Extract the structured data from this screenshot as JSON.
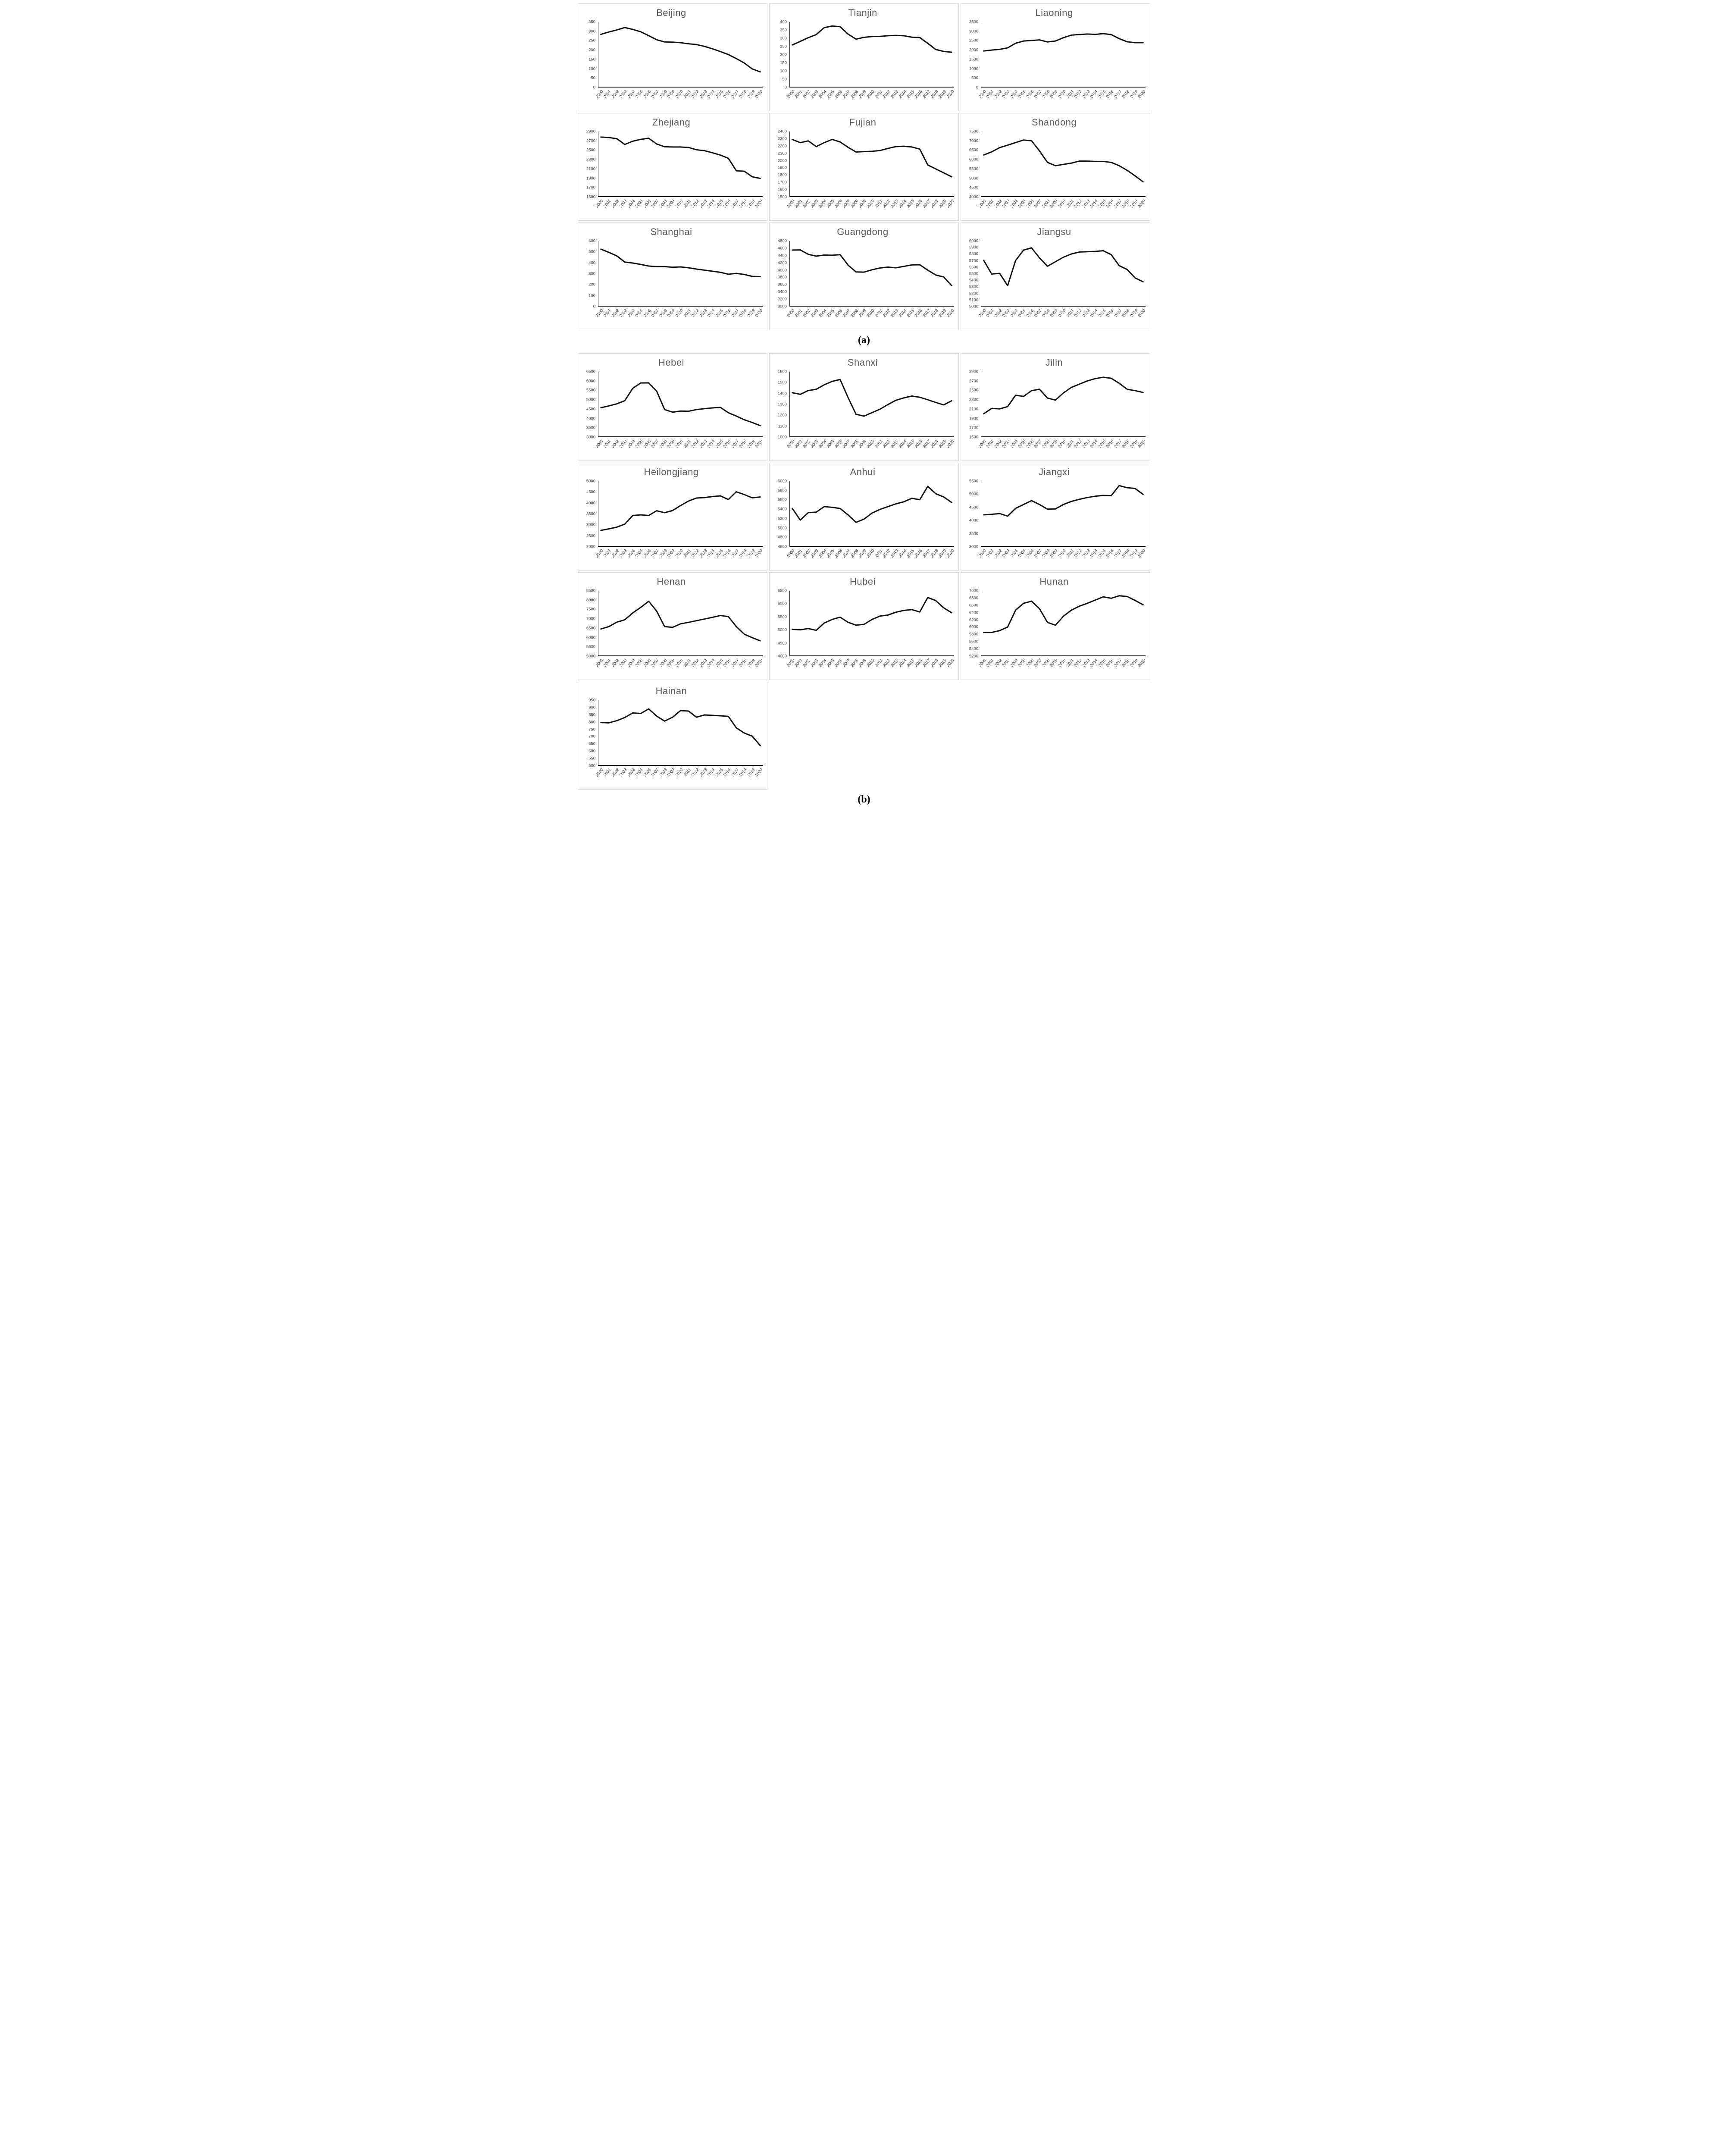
{
  "style": {
    "line_color": "#111111",
    "title_color": "#595959",
    "axis_color": "#262626",
    "box_border_color": "#d5d5d5"
  },
  "x_categories": [
    "2000",
    "2001",
    "2002",
    "2003",
    "2004",
    "2005",
    "2006",
    "2007",
    "2008",
    "2009",
    "2010",
    "2011",
    "2012",
    "2013",
    "2014",
    "2015",
    "2016",
    "2017",
    "2018",
    "2019",
    "2020"
  ],
  "panels": {
    "a": {
      "label": "(a)"
    },
    "b": {
      "label": "(b)"
    }
  },
  "chart_data": [
    {
      "type": "line",
      "panel": "a",
      "title": "Beijing",
      "ylim": [
        0,
        350
      ],
      "y_step": 50,
      "grid": false,
      "legend": "none",
      "values": [
        283,
        296,
        307,
        320,
        310,
        297,
        276,
        254,
        242,
        241,
        238,
        232,
        228,
        218,
        205,
        190,
        174,
        152,
        128,
        96,
        80
      ]
    },
    {
      "type": "line",
      "panel": "a",
      "title": "Tianjin",
      "ylim": [
        0,
        400
      ],
      "y_step": 50,
      "grid": false,
      "legend": "none",
      "values": [
        258,
        280,
        303,
        322,
        365,
        375,
        371,
        325,
        294,
        305,
        310,
        311,
        315,
        317,
        315,
        306,
        304,
        268,
        230,
        218,
        213
      ]
    },
    {
      "type": "line",
      "panel": "a",
      "title": "Liaoning",
      "ylim": [
        0,
        3500
      ],
      "y_step": 500,
      "grid": false,
      "legend": "none",
      "values": [
        1930,
        1980,
        2020,
        2100,
        2350,
        2470,
        2500,
        2530,
        2420,
        2470,
        2650,
        2790,
        2820,
        2850,
        2830,
        2870,
        2820,
        2600,
        2430,
        2380,
        2380
      ]
    },
    {
      "type": "line",
      "panel": "a",
      "title": "Zhejiang",
      "ylim": [
        1500,
        2900
      ],
      "y_step": 200,
      "grid": false,
      "legend": "none",
      "values": [
        2780,
        2770,
        2745,
        2620,
        2690,
        2730,
        2755,
        2630,
        2570,
        2565,
        2565,
        2555,
        2505,
        2485,
        2440,
        2390,
        2320,
        2050,
        2040,
        1920,
        1885
      ]
    },
    {
      "type": "line",
      "panel": "a",
      "title": "Fujian",
      "ylim": [
        1500,
        2400
      ],
      "y_step": 100,
      "grid": false,
      "legend": "none",
      "values": [
        2290,
        2245,
        2270,
        2190,
        2245,
        2290,
        2255,
        2180,
        2115,
        2120,
        2125,
        2135,
        2165,
        2190,
        2195,
        2185,
        2155,
        1935,
        1880,
        1825,
        1770
      ]
    },
    {
      "type": "line",
      "panel": "a",
      "title": "Shandong",
      "ylim": [
        4000,
        7500
      ],
      "y_step": 500,
      "grid": false,
      "legend": "none",
      "values": [
        6230,
        6400,
        6630,
        6760,
        6900,
        7040,
        7000,
        6450,
        5830,
        5650,
        5720,
        5790,
        5900,
        5900,
        5880,
        5880,
        5830,
        5650,
        5400,
        5100,
        4780
      ]
    },
    {
      "type": "line",
      "panel": "a",
      "title": "Shanghai",
      "ylim": [
        0,
        600
      ],
      "y_step": 100,
      "grid": false,
      "legend": "none",
      "values": [
        525,
        495,
        462,
        405,
        396,
        383,
        368,
        363,
        363,
        357,
        360,
        352,
        340,
        330,
        320,
        310,
        292,
        300,
        290,
        272,
        270
      ]
    },
    {
      "type": "line",
      "panel": "a",
      "title": "Guangdong",
      "ylim": [
        3000,
        4800
      ],
      "y_step": 200,
      "grid": false,
      "legend": "none",
      "values": [
        4550,
        4553,
        4430,
        4380,
        4410,
        4405,
        4420,
        4130,
        3940,
        3935,
        4000,
        4050,
        4075,
        4055,
        4095,
        4135,
        4140,
        3990,
        3855,
        3800,
        3560
      ]
    },
    {
      "type": "line",
      "panel": "a",
      "title": "Jiangsu",
      "ylim": [
        5000,
        6000
      ],
      "y_step": 100,
      "grid": false,
      "legend": "none",
      "values": [
        5700,
        5490,
        5500,
        5310,
        5700,
        5860,
        5895,
        5740,
        5610,
        5680,
        5750,
        5800,
        5830,
        5835,
        5840,
        5850,
        5790,
        5620,
        5560,
        5430,
        5370
      ]
    },
    {
      "type": "line",
      "panel": "b",
      "title": "Hebei",
      "ylim": [
        3000,
        6500
      ],
      "y_step": 500,
      "grid": false,
      "legend": "none",
      "values": [
        4550,
        4650,
        4760,
        4930,
        5600,
        5890,
        5895,
        5450,
        4450,
        4310,
        4370,
        4360,
        4450,
        4500,
        4540,
        4570,
        4280,
        4100,
        3900,
        3750,
        3580
      ]
    },
    {
      "type": "line",
      "panel": "b",
      "title": "Shanxi",
      "ylim": [
        1000,
        1600
      ],
      "y_step": 100,
      "grid": false,
      "legend": "none",
      "values": [
        1405,
        1390,
        1425,
        1437,
        1478,
        1510,
        1528,
        1360,
        1205,
        1188,
        1220,
        1252,
        1295,
        1335,
        1357,
        1374,
        1363,
        1340,
        1315,
        1292,
        1330
      ]
    },
    {
      "type": "line",
      "panel": "b",
      "title": "Jilin",
      "ylim": [
        1500,
        2900
      ],
      "y_step": 200,
      "grid": false,
      "legend": "none",
      "values": [
        1990,
        2105,
        2095,
        2145,
        2390,
        2365,
        2490,
        2520,
        2330,
        2285,
        2440,
        2560,
        2630,
        2700,
        2750,
        2780,
        2758,
        2650,
        2520,
        2490,
        2450
      ]
    },
    {
      "type": "line",
      "panel": "b",
      "title": "Heilongjiang",
      "ylim": [
        2000,
        5000
      ],
      "y_step": 500,
      "grid": false,
      "legend": "none",
      "values": [
        2720,
        2790,
        2870,
        3010,
        3410,
        3440,
        3410,
        3630,
        3540,
        3640,
        3870,
        4080,
        4220,
        4240,
        4290,
        4320,
        4150,
        4510,
        4380,
        4230,
        4270
      ]
    },
    {
      "type": "line",
      "panel": "b",
      "title": "Anhui",
      "ylim": [
        4600,
        6000
      ],
      "y_step": 200,
      "grid": false,
      "legend": "none",
      "values": [
        5410,
        5160,
        5320,
        5330,
        5450,
        5435,
        5410,
        5270,
        5110,
        5180,
        5310,
        5390,
        5450,
        5510,
        5555,
        5630,
        5600,
        5890,
        5730,
        5660,
        5540
      ]
    },
    {
      "type": "line",
      "panel": "b",
      "title": "Jiangxi",
      "ylim": [
        3000,
        5500
      ],
      "y_step": 500,
      "grid": false,
      "legend": "none",
      "values": [
        4200,
        4220,
        4250,
        4150,
        4450,
        4600,
        4750,
        4600,
        4420,
        4430,
        4600,
        4720,
        4800,
        4870,
        4920,
        4950,
        4940,
        5330,
        5250,
        5220,
        4990
      ]
    },
    {
      "type": "line",
      "panel": "b",
      "title": "Henan",
      "ylim": [
        5000,
        8500
      ],
      "y_step": 500,
      "grid": false,
      "legend": "none",
      "values": [
        6430,
        6560,
        6800,
        6930,
        7300,
        7600,
        7930,
        7400,
        6560,
        6520,
        6710,
        6790,
        6880,
        6970,
        7060,
        7160,
        7100,
        6560,
        6150,
        5960,
        5790
      ]
    },
    {
      "type": "line",
      "panel": "b",
      "title": "Hubei",
      "ylim": [
        4000,
        6500
      ],
      "y_step": 500,
      "grid": false,
      "legend": "none",
      "values": [
        5010,
        4990,
        5040,
        4970,
        5250,
        5390,
        5480,
        5280,
        5170,
        5200,
        5390,
        5520,
        5560,
        5670,
        5740,
        5770,
        5680,
        6240,
        6120,
        5840,
        5650
      ]
    },
    {
      "type": "line",
      "panel": "b",
      "title": "Hunan",
      "ylim": [
        5200,
        7000
      ],
      "y_step": 200,
      "grid": false,
      "legend": "none",
      "values": [
        5840,
        5840,
        5890,
        5990,
        6460,
        6650,
        6710,
        6500,
        6120,
        6040,
        6290,
        6460,
        6570,
        6650,
        6740,
        6830,
        6790,
        6860,
        6840,
        6730,
        6610
      ]
    },
    {
      "type": "line",
      "panel": "b",
      "title": "Hainan",
      "ylim": [
        500,
        950
      ],
      "y_step": 50,
      "grid": false,
      "legend": "none",
      "values": [
        795,
        793,
        808,
        830,
        862,
        858,
        890,
        840,
        805,
        832,
        878,
        875,
        832,
        848,
        845,
        842,
        838,
        758,
        722,
        700,
        635
      ]
    }
  ]
}
